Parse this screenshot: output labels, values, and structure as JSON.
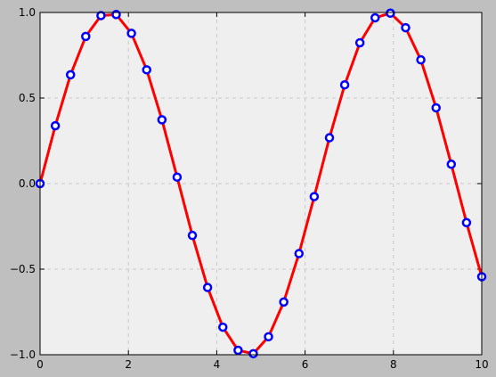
{
  "chart_data": {
    "type": "line",
    "title": "",
    "xlabel": "",
    "ylabel": "",
    "xlim": [
      0,
      10
    ],
    "ylim": [
      -1.0,
      1.0
    ],
    "x_ticks": [
      0,
      2,
      4,
      6,
      8,
      10
    ],
    "x_tick_labels": [
      "0",
      "2",
      "4",
      "6",
      "8",
      "10"
    ],
    "y_ticks": [
      -1.0,
      -0.5,
      0.0,
      0.5,
      1.0
    ],
    "y_tick_labels": [
      "−1.0",
      "−0.5",
      "0.0",
      "0.5",
      "1.0"
    ],
    "grid": true,
    "series": [
      {
        "name": "",
        "color": "#ff0000",
        "marker_edge_color": "#0000ff",
        "marker_face_color": "#ffffff",
        "x": [
          0,
          0.345,
          0.69,
          1.034,
          1.379,
          1.724,
          2.069,
          2.414,
          2.759,
          3.103,
          3.448,
          3.793,
          4.138,
          4.483,
          4.828,
          5.172,
          5.517,
          5.862,
          6.207,
          6.552,
          6.897,
          7.241,
          7.586,
          7.931,
          8.276,
          8.621,
          8.966,
          9.31,
          9.655,
          10
        ],
        "y": [
          0.0,
          0.338,
          0.636,
          0.86,
          0.982,
          0.988,
          0.878,
          0.665,
          0.373,
          0.038,
          -0.303,
          -0.607,
          -0.839,
          -0.974,
          -0.994,
          -0.895,
          -0.692,
          -0.409,
          -0.076,
          0.268,
          0.577,
          0.823,
          0.969,
          0.996,
          0.911,
          0.723,
          0.443,
          0.113,
          -0.228,
          -0.544
        ]
      }
    ]
  },
  "colors": {
    "figure_background": "#bfbfbf",
    "plot_background": "#efefef",
    "grid": "#c8c8c8",
    "axes_edge": "#000000"
  }
}
